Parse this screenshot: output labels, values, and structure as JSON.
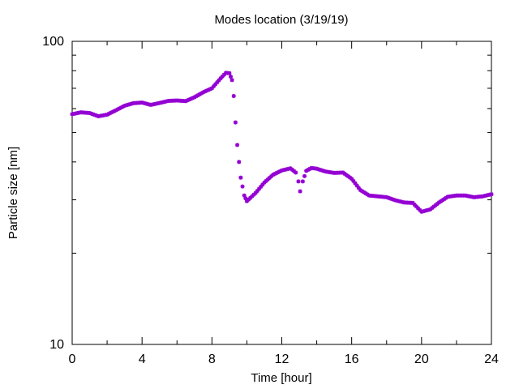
{
  "chart_data": {
    "type": "scatter",
    "title": "Modes location (3/19/19)",
    "xlabel": "Time [hour]",
    "ylabel": "Particle size [nm]",
    "xlim": [
      0,
      24
    ],
    "ylim": [
      10,
      100
    ],
    "yscale": "log",
    "x_ticks": [
      0,
      4,
      8,
      12,
      16,
      20,
      24
    ],
    "y_ticks": [
      10,
      100
    ],
    "grid": false,
    "marker_color": "#9400d3",
    "series": [
      {
        "points": [
          [
            0.0,
            57.5
          ],
          [
            0.5,
            58.3
          ],
          [
            1.0,
            58.0
          ],
          [
            1.5,
            56.6
          ],
          [
            2.0,
            57.3
          ],
          [
            2.5,
            59.2
          ],
          [
            3.0,
            61.3
          ],
          [
            3.5,
            62.5
          ],
          [
            4.0,
            62.8
          ],
          [
            4.5,
            61.7
          ],
          [
            5.0,
            62.6
          ],
          [
            5.5,
            63.6
          ],
          [
            6.0,
            63.8
          ],
          [
            6.5,
            63.5
          ],
          [
            7.0,
            65.4
          ],
          [
            7.5,
            67.9
          ],
          [
            8.0,
            70.0
          ],
          [
            8.5,
            75.5
          ],
          [
            8.8,
            78.7
          ],
          [
            9.0,
            78.5
          ],
          [
            9.15,
            74.5
          ],
          [
            9.25,
            66.0
          ],
          [
            9.35,
            54.0
          ],
          [
            9.45,
            45.5
          ],
          [
            9.55,
            40.0
          ],
          [
            9.65,
            35.5
          ],
          [
            9.75,
            33.2
          ],
          [
            9.85,
            31.0
          ],
          [
            10.0,
            29.7
          ],
          [
            10.5,
            31.6
          ],
          [
            11.0,
            34.2
          ],
          [
            11.5,
            36.3
          ],
          [
            12.0,
            37.5
          ],
          [
            12.5,
            38.1
          ],
          [
            12.8,
            36.9
          ],
          [
            12.95,
            34.5
          ],
          [
            13.05,
            32.0
          ],
          [
            13.2,
            34.5
          ],
          [
            13.4,
            37.4
          ],
          [
            13.7,
            38.2
          ],
          [
            14.0,
            38.0
          ],
          [
            14.5,
            37.2
          ],
          [
            15.0,
            36.8
          ],
          [
            15.5,
            36.9
          ],
          [
            16.0,
            35.2
          ],
          [
            16.5,
            32.3
          ],
          [
            17.0,
            31.0
          ],
          [
            17.5,
            30.8
          ],
          [
            18.0,
            30.6
          ],
          [
            18.5,
            29.9
          ],
          [
            19.0,
            29.4
          ],
          [
            19.5,
            29.3
          ],
          [
            20.0,
            27.4
          ],
          [
            20.5,
            27.9
          ],
          [
            21.0,
            29.4
          ],
          [
            21.5,
            30.7
          ],
          [
            22.0,
            31.0
          ],
          [
            22.5,
            31.0
          ],
          [
            23.0,
            30.6
          ],
          [
            23.5,
            30.8
          ],
          [
            24.0,
            31.3
          ]
        ]
      }
    ]
  }
}
